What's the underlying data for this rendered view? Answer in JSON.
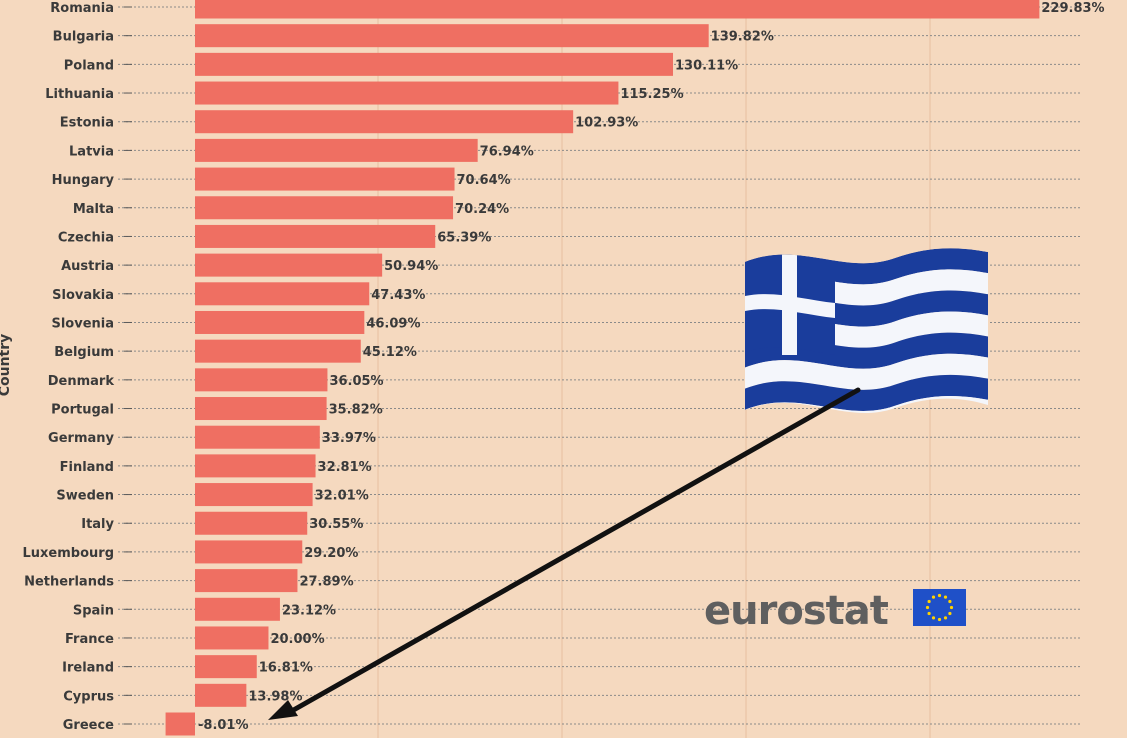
{
  "chart_data": {
    "type": "bar",
    "orientation": "horizontal",
    "ylabel": "Country",
    "categories": [
      "Romania",
      "Bulgaria",
      "Poland",
      "Lithuania",
      "Estonia",
      "Latvia",
      "Hungary",
      "Malta",
      "Czechia",
      "Austria",
      "Slovakia",
      "Slovenia",
      "Belgium",
      "Denmark",
      "Portugal",
      "Germany",
      "Finland",
      "Sweden",
      "Italy",
      "Luxembourg",
      "Netherlands",
      "Spain",
      "France",
      "Ireland",
      "Cyprus",
      "Greece"
    ],
    "values": [
      229.83,
      139.82,
      130.11,
      115.25,
      102.93,
      76.94,
      70.64,
      70.24,
      65.39,
      50.94,
      47.43,
      46.09,
      45.12,
      36.05,
      35.82,
      33.97,
      32.81,
      32.01,
      30.55,
      29.2,
      27.89,
      23.12,
      20.0,
      16.81,
      13.98,
      -8.01
    ],
    "value_labels": [
      "229.83%",
      "139.82%",
      "130.11%",
      "115.25%",
      "102.93%",
      "76.94%",
      "70.64%",
      "70.24%",
      "65.39%",
      "50.94%",
      "47.43%",
      "46.09%",
      "45.12%",
      "36.05%",
      "35.82%",
      "33.97%",
      "32.81%",
      "32.01%",
      "30.55%",
      "29.20%",
      "27.89%",
      "23.12%",
      "20.00%",
      "16.81%",
      "13.98%",
      "-8.01%"
    ],
    "bar_color": "#ef6f62",
    "grid": true,
    "highlight": "Greece"
  },
  "annotations": {
    "flag_icon": "greece-flag-icon",
    "arrow_target": "Greece"
  },
  "logo": {
    "text": "eurostat",
    "text_color": "#5f5f5f",
    "flag_color": "#1f50c8",
    "star_color": "#ffd200"
  },
  "colors": {
    "background": "#f5d9bf",
    "bar": "#ef6f62",
    "text": "#3a3a3a"
  }
}
